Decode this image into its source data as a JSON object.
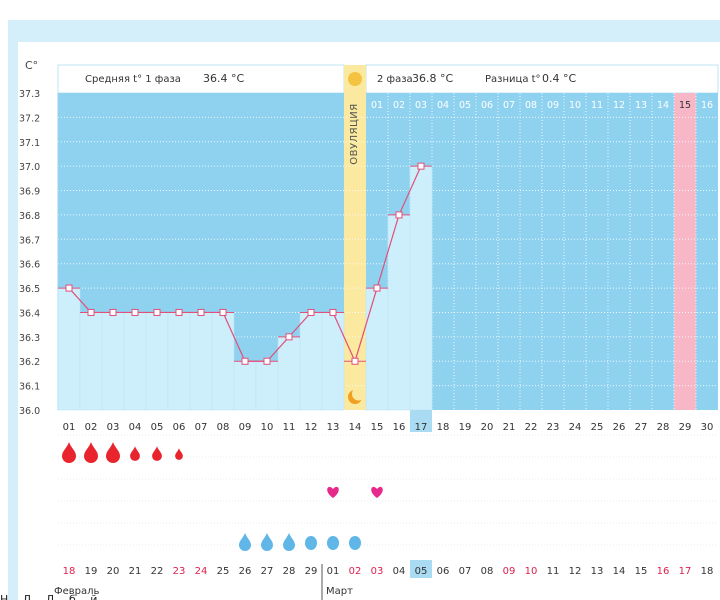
{
  "header": {
    "unit": "C°",
    "phase1_label": "Средняя t° 1 фаза",
    "phase1_value": "36.4 °C",
    "phase2_label": "2 фаза",
    "phase2_value": "36.8 °C",
    "difference_label": "Разница t°",
    "difference_value": "0.4 °C",
    "ovulation_label": "ОВУЛЯЦИЯ"
  },
  "colors": {
    "phase_background": "#8fd2ef",
    "bar_fill": "#cdeefb",
    "ovulation_band": "#fbe9a0",
    "temperature_line": "#e0507a",
    "pink_day": "#f7b7c6",
    "highlight_day": "#a9dcf2",
    "blood_drop": "#e8242d",
    "heart": "#e8298c",
    "water_drop": "#60b6e6",
    "weekend_text": "#e0204c"
  },
  "chart_data": {
    "type": "line",
    "ylabel": "C°",
    "ylim": [
      36.0,
      37.3
    ],
    "yticks": [
      "37.3",
      "37.2",
      "37.1",
      "37.0",
      "36.9",
      "36.8",
      "36.7",
      "36.6",
      "36.5",
      "36.4",
      "36.3",
      "36.2",
      "36.1",
      "36.0"
    ],
    "days": [
      "01",
      "02",
      "03",
      "04",
      "05",
      "06",
      "07",
      "08",
      "09",
      "10",
      "11",
      "12",
      "13",
      "14",
      "15",
      "16",
      "17",
      "18",
      "19",
      "20",
      "21",
      "22",
      "23",
      "24",
      "25",
      "26",
      "27",
      "28",
      "29",
      "30"
    ],
    "temperatures": [
      36.5,
      36.4,
      36.4,
      36.4,
      36.4,
      36.4,
      36.4,
      36.4,
      36.2,
      36.2,
      36.3,
      36.4,
      36.4,
      36.2,
      36.5,
      36.8,
      37.0
    ],
    "ovulation_day": 14,
    "phase2_days": [
      "01",
      "02",
      "03",
      "04",
      "05",
      "06",
      "07",
      "08",
      "09",
      "10",
      "11",
      "12",
      "13",
      "14",
      "15",
      "16"
    ],
    "phase2_pink_day": "15",
    "highlighted_cycle_day": "17",
    "pink_cycle_day": "29",
    "calendar_dates": [
      "18",
      "19",
      "20",
      "21",
      "22",
      "23",
      "24",
      "25",
      "26",
      "27",
      "28",
      "29",
      "01",
      "02",
      "03",
      "04",
      "05",
      "06",
      "07",
      "08",
      "09",
      "10",
      "11",
      "12",
      "13",
      "14",
      "15",
      "16",
      "17",
      "18"
    ],
    "calendar_red_dates": [
      0,
      5,
      6,
      13,
      14,
      20,
      21,
      27,
      28
    ],
    "calendar_highlight_index": 16,
    "months": [
      "Февраль",
      "Март"
    ],
    "month_break_index": 12,
    "blood_drops": [
      {
        "day": 1,
        "size": "large"
      },
      {
        "day": 2,
        "size": "large"
      },
      {
        "day": 3,
        "size": "large"
      },
      {
        "day": 4,
        "size": "small"
      },
      {
        "day": 5,
        "size": "small"
      },
      {
        "day": 6,
        "size": "tiny"
      }
    ],
    "hearts": [
      13,
      15
    ],
    "water_drops": [
      {
        "day": 9,
        "shape": "drop"
      },
      {
        "day": 10,
        "shape": "drop"
      },
      {
        "day": 11,
        "shape": "drop"
      },
      {
        "day": 12,
        "shape": "round"
      },
      {
        "day": 13,
        "shape": "round"
      },
      {
        "day": 14,
        "shape": "round"
      }
    ]
  },
  "footer": {
    "legend_text": "Н… Д… Д… б… й…"
  }
}
